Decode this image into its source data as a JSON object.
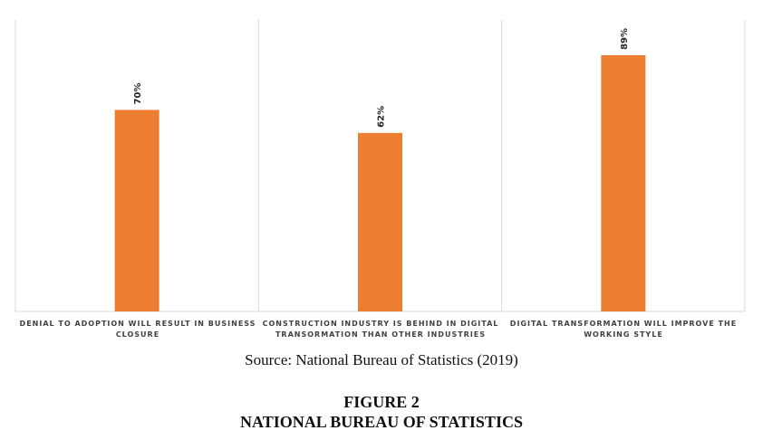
{
  "chart_data": {
    "type": "bar",
    "categories": [
      "DENIAL TO ADOPTION WILL RESULT IN BUSINESS CLOSURE",
      "CONSTRUCTION INDUSTRY IS BEHIND IN DIGITAL TRANSORMATION THAN OTHER INDUSTRIES",
      "DIGITAL TRANSFORMATION WILL IMPROVE THE WORKING STYLE"
    ],
    "values": [
      70,
      62,
      89
    ],
    "data_labels": [
      "70%",
      "62%",
      "89%"
    ],
    "ylim": [
      0,
      100
    ],
    "bar_color": "#ED7D31",
    "grid": false,
    "legend": "none"
  },
  "caption": {
    "source": "Source: National Bureau of Statistics (2019)",
    "figure_number": "FIGURE 2",
    "figure_title": "NATIONAL BUREAU OF STATISTICS"
  }
}
